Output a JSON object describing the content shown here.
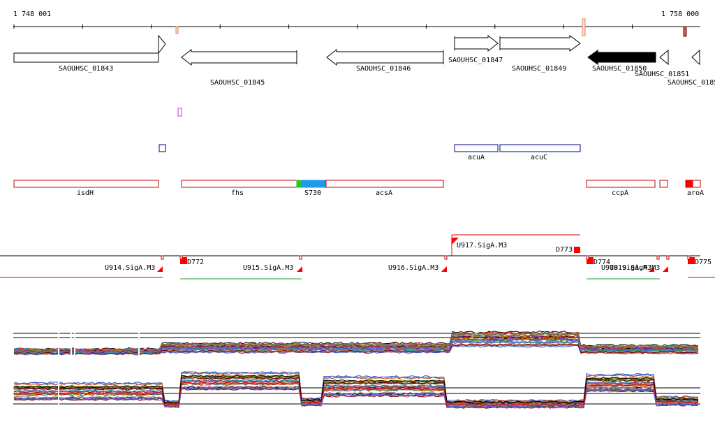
{
  "ruler": {
    "start_label": "1 748 001",
    "end_label": "1 758 000"
  },
  "genes": [
    {
      "id": "g1843",
      "label": "SAOUHSC_01843",
      "strand": "+",
      "color": "#ffffff"
    },
    {
      "id": "g1845",
      "label": "SAOUHSC_01845",
      "strand": "-",
      "color": "#ffffff"
    },
    {
      "id": "g1846",
      "label": "SAOUHSC_01846",
      "strand": "-",
      "color": "#ffffff"
    },
    {
      "id": "g1847",
      "label": "SAOUHSC_01847",
      "strand": "+",
      "color": "#ffffff"
    },
    {
      "id": "g1849",
      "label": "SAOUHSC_01849",
      "strand": "+",
      "color": "#ffffff"
    },
    {
      "id": "g1850",
      "label": "SAOUHSC_01850",
      "strand": "-",
      "color": "#000000"
    },
    {
      "id": "g1851",
      "label": "SAOUHSC_01851",
      "strand": "-",
      "color": "#ffffff"
    },
    {
      "id": "g1852",
      "label": "SAOUHSC_0185",
      "strand": "-",
      "color": "#ffffff"
    }
  ],
  "operons": [
    {
      "label": "acuA"
    },
    {
      "label": "acuC"
    }
  ],
  "regions": [
    {
      "label": "isdH"
    },
    {
      "label": "fhs"
    },
    {
      "label": "S730"
    },
    {
      "label": "acsA"
    },
    {
      "label": "ccpA"
    },
    {
      "label": "aroA"
    }
  ],
  "transcripts": [
    {
      "label": "U914.SigA.M3"
    },
    {
      "label": "D772"
    },
    {
      "label": "U915.SigA.M3"
    },
    {
      "label": "U916.SigA.M3"
    },
    {
      "label": "U917.SigA.M3"
    },
    {
      "label": "D773"
    },
    {
      "label": "D774"
    },
    {
      "label": "U918.SigA.M3"
    },
    {
      "label": "U919.SigA.M3"
    },
    {
      "label": "D775"
    }
  ],
  "colors": {
    "gene_border": "#000000",
    "operon_border": "#00008b",
    "region_border": "#cc0000",
    "region_green": "#22cc22",
    "region_blue": "#1e9be8",
    "tu_red": "#dd0000",
    "tu_green": "#22aa22",
    "profile_palette": [
      "#000000",
      "#cc0000",
      "#2a8a2a",
      "#3355cc",
      "#cc7a00",
      "#8833aa",
      "#888888",
      "#b8860b",
      "#1aa3a3",
      "#d15a9a",
      "#556b2f",
      "#c85a1e",
      "#5a5aff",
      "#7a0000"
    ]
  }
}
